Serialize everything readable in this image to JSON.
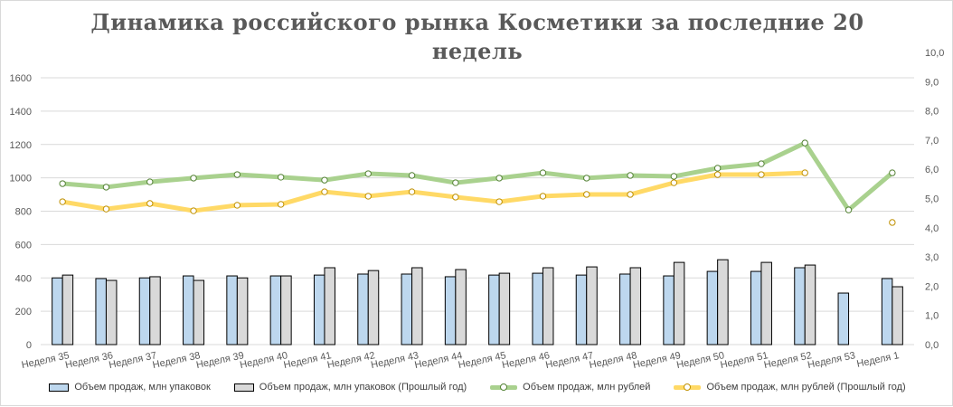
{
  "chart_data": {
    "type": "bar+line",
    "title": "Динамика российского рынка Косметики за последние 20 недель",
    "categories": [
      "Неделя 35",
      "Неделя 36",
      "Неделя 37",
      "Неделя 38",
      "Неделя 39",
      "Неделя 40",
      "Неделя 41",
      "Неделя 42",
      "Неделя 43",
      "Неделя 44",
      "Неделя 45",
      "Неделя 46",
      "Неделя 47",
      "Неделя 48",
      "Неделя 49",
      "Неделя 50",
      "Неделя 51",
      "Неделя 52",
      "Неделя 53",
      "Неделя 1"
    ],
    "left_axis": {
      "ylim": [
        0,
        1600
      ],
      "ticks": [
        "0",
        "200",
        "400",
        "600",
        "800",
        "1000",
        "1200",
        "1400",
        "1600"
      ]
    },
    "right_axis": {
      "ylim": [
        0,
        10
      ],
      "ticks": [
        "0,0",
        "1,0",
        "2,0",
        "3,0",
        "4,0",
        "5,0",
        "6,0",
        "7,0",
        "8,0",
        "9,0",
        "10,0"
      ]
    },
    "grid": true,
    "legend_position": "bottom",
    "series": [
      {
        "name": "Объем продаж, млн упаковок",
        "type": "bar",
        "axis": "left",
        "color": "#bdd7ee",
        "values": [
          400,
          396,
          400,
          412,
          412,
          412,
          417,
          423,
          423,
          407,
          417,
          428,
          417,
          423,
          412,
          439,
          439,
          461,
          309,
          396
        ]
      },
      {
        "name": "Объем продаж, млн упаковок (Прошлый год)",
        "type": "bar",
        "axis": "left",
        "color": "#d9d9d9",
        "values": [
          417,
          385,
          407,
          385,
          400,
          412,
          461,
          444,
          461,
          450,
          428,
          461,
          466,
          461,
          493,
          509,
          493,
          477,
          null,
          347
        ]
      },
      {
        "name": "Объем продаж, млн рублей",
        "type": "line",
        "axis": "right",
        "color": "#a9d18e",
        "marker": "#548235",
        "values": [
          5.51,
          5.39,
          5.57,
          5.7,
          5.82,
          5.73,
          5.63,
          5.85,
          5.79,
          5.54,
          5.7,
          5.88,
          5.7,
          5.79,
          5.76,
          6.04,
          6.19,
          6.9,
          4.61,
          5.88
        ]
      },
      {
        "name": "Объем продаж, млн рублей (Прошлый год)",
        "type": "line",
        "axis": "right",
        "color": "#ffd966",
        "marker": "#bf9000",
        "values": [
          4.89,
          4.64,
          4.83,
          4.58,
          4.77,
          4.8,
          5.23,
          5.08,
          5.23,
          5.05,
          4.89,
          5.08,
          5.14,
          5.14,
          5.54,
          5.82,
          5.82,
          5.88,
          null,
          4.18
        ]
      }
    ]
  }
}
